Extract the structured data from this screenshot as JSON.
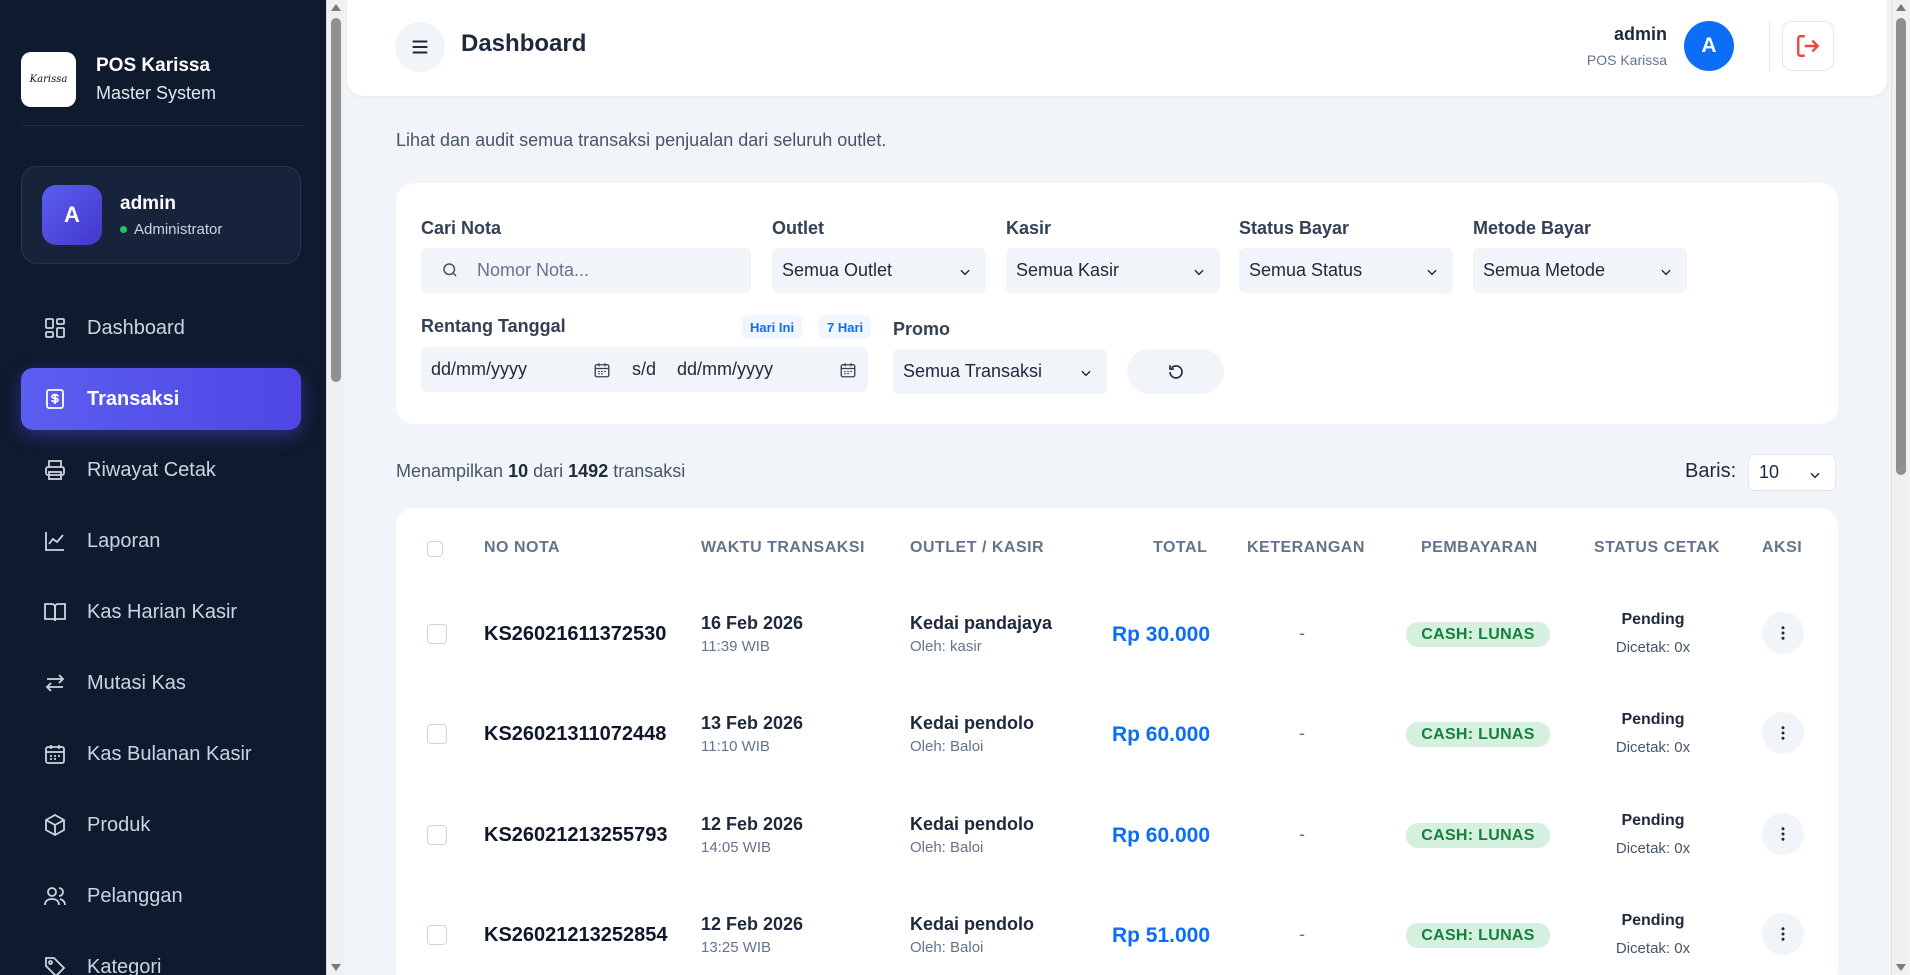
{
  "brand": {
    "logo_text": "Karissa",
    "title": "POS Karissa",
    "subtitle": "Master System"
  },
  "user": {
    "avatar": "A",
    "name": "admin",
    "role": "Administrator"
  },
  "sidebar": {
    "items": [
      {
        "label": "Dashboard",
        "icon": "dashboard-icon"
      },
      {
        "label": "Transaksi",
        "icon": "receipt-icon",
        "active": true
      },
      {
        "label": "Riwayat Cetak",
        "icon": "printer-icon"
      },
      {
        "label": "Laporan",
        "icon": "chart-icon"
      },
      {
        "label": "Kas Harian Kasir",
        "icon": "book-icon"
      },
      {
        "label": "Mutasi Kas",
        "icon": "transfer-icon"
      },
      {
        "label": "Kas Bulanan Kasir",
        "icon": "calendar-icon"
      },
      {
        "label": "Produk",
        "icon": "box-icon"
      },
      {
        "label": "Pelanggan",
        "icon": "users-icon"
      },
      {
        "label": "Kategori",
        "icon": "tag-icon"
      }
    ]
  },
  "header": {
    "title": "Dashboard",
    "user_name": "admin",
    "user_org": "POS Karissa",
    "avatar": "A"
  },
  "page": {
    "description": "Lihat dan audit semua transaksi penjualan dari seluruh outlet."
  },
  "filters": {
    "search": {
      "label": "Cari Nota",
      "placeholder": "Nomor Nota..."
    },
    "outlet": {
      "label": "Outlet",
      "value": "Semua Outlet"
    },
    "kasir": {
      "label": "Kasir",
      "value": "Semua Kasir"
    },
    "status": {
      "label": "Status Bayar",
      "value": "Semua Status"
    },
    "metode": {
      "label": "Metode Bayar",
      "value": "Semua Metode"
    },
    "date": {
      "label": "Rentang Tanggal",
      "chip_today": "Hari Ini",
      "chip_week": "7 Hari",
      "from": "dd/mm/yyyy",
      "separator": "s/d",
      "to": "dd/mm/yyyy"
    },
    "promo": {
      "label": "Promo",
      "value": "Semua Transaksi"
    }
  },
  "summary": {
    "prefix": "Menampilkan",
    "shown": "10",
    "middle": "dari",
    "total": "1492",
    "suffix": "transaksi",
    "rows_label": "Baris:",
    "rows_value": "10"
  },
  "table": {
    "headers": [
      "NO NOTA",
      "WAKTU TRANSAKSI",
      "OUTLET / KASIR",
      "TOTAL",
      "KETERANGAN",
      "PEMBAYARAN",
      "STATUS CETAK",
      "AKSI"
    ],
    "rows": [
      {
        "nota": "KS26021611372530",
        "date": "16 Feb 2026",
        "time": "11:39 WIB",
        "outlet": "Kedai pandajaya",
        "kasir": "Oleh: kasir",
        "total": "Rp 30.000",
        "ket": "-",
        "pay": "CASH: LUNAS",
        "status": "Pending",
        "printed": "Dicetak: 0x"
      },
      {
        "nota": "KS26021311072448",
        "date": "13 Feb 2026",
        "time": "11:10 WIB",
        "outlet": "Kedai pendolo",
        "kasir": "Oleh: Baloi",
        "total": "Rp 60.000",
        "ket": "-",
        "pay": "CASH: LUNAS",
        "status": "Pending",
        "printed": "Dicetak: 0x"
      },
      {
        "nota": "KS26021213255793",
        "date": "12 Feb 2026",
        "time": "14:05 WIB",
        "outlet": "Kedai pendolo",
        "kasir": "Oleh: Baloi",
        "total": "Rp 60.000",
        "ket": "-",
        "pay": "CASH: LUNAS",
        "status": "Pending",
        "printed": "Dicetak: 0x"
      },
      {
        "nota": "KS26021213252854",
        "date": "12 Feb 2026",
        "time": "13:25 WIB",
        "outlet": "Kedai pendolo",
        "kasir": "Oleh: Baloi",
        "total": "Rp 51.000",
        "ket": "-",
        "pay": "CASH: LUNAS",
        "status": "Pending",
        "printed": "Dicetak: 0x"
      }
    ]
  },
  "colors": {
    "sidebar_bg": "#0f1a2e",
    "accent": "#4f46e5",
    "primary_blue": "#0b6ef5",
    "paid_bg": "#d6f0e0",
    "paid_text": "#15803d",
    "logout": "#ef4444"
  }
}
